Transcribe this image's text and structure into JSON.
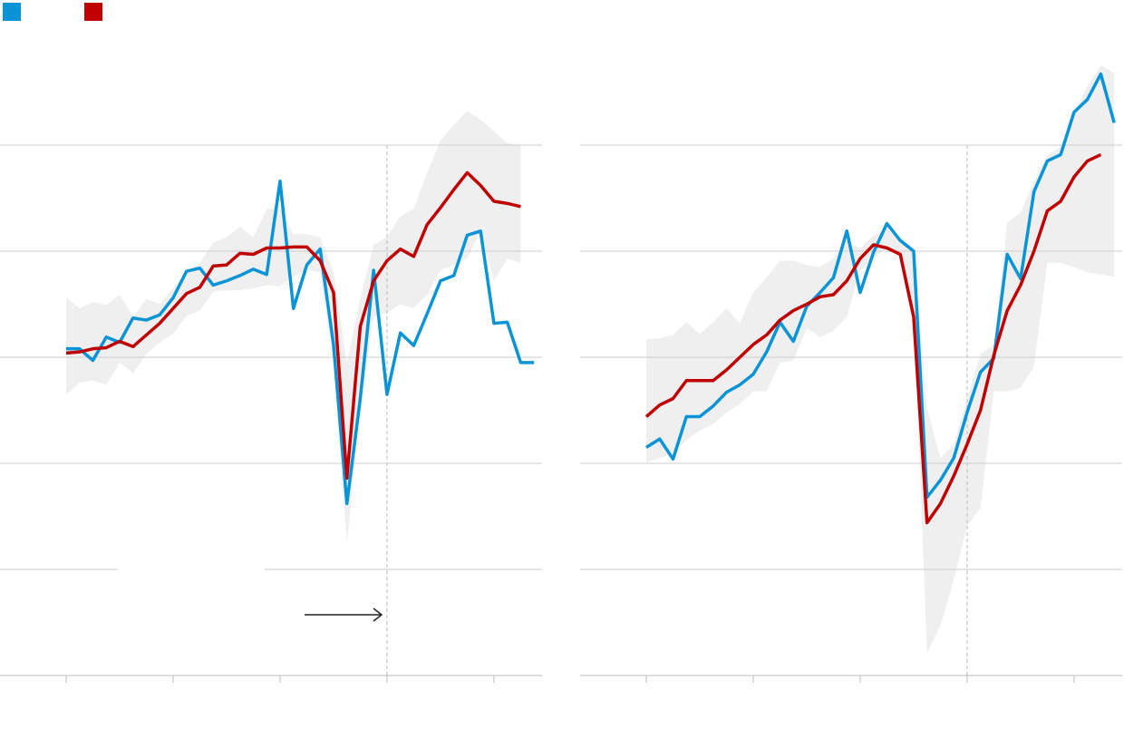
{
  "chart_data": [
    {
      "type": "line",
      "x": [
        0,
        1,
        2,
        3,
        4,
        5,
        6,
        7,
        8,
        9,
        10,
        11,
        12,
        13,
        14,
        15,
        16,
        17,
        18,
        19,
        20,
        21,
        22,
        23,
        24,
        25,
        26,
        27,
        28,
        29,
        30,
        31,
        32,
        33,
        34,
        35
      ],
      "series": [
        {
          "color": "#0a94d6",
          "values": [
            3.08,
            3.08,
            2.97,
            3.19,
            3.14,
            3.37,
            3.35,
            3.4,
            3.56,
            3.81,
            3.84,
            3.68,
            3.72,
            3.77,
            3.83,
            3.78,
            4.66,
            3.46,
            3.87,
            4.02,
            3.12,
            1.62,
            2.61,
            3.82,
            2.65,
            3.23,
            3.11,
            3.41,
            3.72,
            3.77,
            4.15,
            4.19,
            3.32,
            3.33,
            2.95,
            2.95
          ]
        },
        {
          "color": "#c00000",
          "values": [
            3.04,
            3.05,
            3.08,
            3.09,
            3.15,
            3.1,
            3.21,
            3.32,
            3.46,
            3.6,
            3.66,
            3.86,
            3.87,
            3.98,
            3.97,
            4.03,
            4.03,
            4.04,
            4.04,
            3.91,
            3.61,
            1.86,
            3.29,
            3.72,
            3.91,
            4.02,
            3.95,
            4.25,
            4.41,
            4.58,
            4.74,
            4.62,
            4.47,
            4.45,
            4.42,
            null
          ]
        }
      ],
      "band": {
        "color": "#efefef",
        "upper": [
          3.56,
          3.46,
          3.52,
          3.49,
          3.59,
          3.38,
          3.55,
          3.5,
          3.65,
          3.8,
          3.89,
          4.08,
          4.13,
          4.23,
          4.13,
          4.4,
          4.4,
          4.16,
          4.16,
          4.13,
          3.8,
          2.95,
          3.55,
          4.06,
          4.13,
          4.33,
          4.4,
          4.74,
          5.04,
          5.19,
          5.32,
          5.24,
          5.13,
          5.02,
          5.0,
          null
        ],
        "lower": [
          2.65,
          2.76,
          2.78,
          2.74,
          2.95,
          2.85,
          3.03,
          3.14,
          3.22,
          3.39,
          3.44,
          3.62,
          3.63,
          3.63,
          3.65,
          3.68,
          3.67,
          3.76,
          3.82,
          3.8,
          2.95,
          1.24,
          2.52,
          3.38,
          3.42,
          3.5,
          3.46,
          3.59,
          3.82,
          3.87,
          3.93,
          4.19,
          3.72,
          3.93,
          3.89,
          null
        ]
      },
      "marker_x": 24,
      "xlim": [
        -4.95,
        35.6
      ],
      "xticks": [
        0,
        8,
        16,
        24,
        32
      ],
      "ylim": [
        0,
        6
      ],
      "yticks": [
        0,
        1,
        2,
        3,
        4,
        5
      ],
      "grid": true
    },
    {
      "type": "line",
      "x": [
        0,
        1,
        2,
        3,
        4,
        5,
        6,
        7,
        8,
        9,
        10,
        11,
        12,
        13,
        14,
        15,
        16,
        17,
        18,
        19,
        20,
        21,
        22,
        23,
        24,
        25,
        26,
        27,
        28,
        29,
        30,
        31,
        32,
        33,
        34,
        35
      ],
      "series": [
        {
          "color": "#0a94d6",
          "values": [
            2.15,
            2.23,
            2.04,
            2.44,
            2.44,
            2.54,
            2.67,
            2.74,
            2.84,
            3.05,
            3.33,
            3.15,
            3.48,
            3.61,
            3.75,
            4.19,
            3.61,
            3.99,
            4.26,
            4.1,
            4.0,
            1.68,
            1.84,
            2.05,
            2.48,
            2.86,
            2.99,
            3.97,
            3.74,
            4.56,
            4.85,
            4.91,
            5.31,
            5.43,
            5.67,
            5.21
          ]
        },
        {
          "color": "#c00000",
          "values": [
            2.44,
            2.55,
            2.61,
            2.78,
            2.78,
            2.78,
            2.88,
            3.0,
            3.12,
            3.21,
            3.35,
            3.44,
            3.5,
            3.57,
            3.59,
            3.72,
            3.93,
            4.06,
            4.03,
            3.97,
            3.38,
            1.44,
            1.62,
            1.88,
            2.18,
            2.5,
            3.02,
            3.44,
            3.68,
            4.0,
            4.38,
            4.47,
            4.7,
            4.85,
            4.91,
            null
          ]
        }
      ],
      "band": {
        "color": "#efefef",
        "upper": [
          3.17,
          3.18,
          3.21,
          3.33,
          3.22,
          3.33,
          3.46,
          3.32,
          3.61,
          3.75,
          3.91,
          3.91,
          3.87,
          3.85,
          3.93,
          4.09,
          4.03,
          4.15,
          4.21,
          4.12,
          4.03,
          2.52,
          2.05,
          2.18,
          2.61,
          3.03,
          3.12,
          4.27,
          4.36,
          4.66,
          4.91,
          4.98,
          5.3,
          5.56,
          5.75,
          5.68
        ],
        "lower": [
          2.01,
          2.05,
          2.09,
          2.22,
          2.31,
          2.37,
          2.48,
          2.56,
          2.68,
          2.68,
          2.95,
          2.97,
          3.27,
          3.19,
          3.25,
          3.38,
          3.82,
          3.93,
          4.04,
          3.97,
          3.46,
          0.21,
          0.47,
          0.9,
          1.41,
          1.58,
          2.68,
          2.68,
          2.71,
          2.91,
          3.89,
          3.89,
          3.85,
          3.8,
          3.78,
          3.76
        ]
      },
      "marker_x": 24,
      "xlim": [
        -4.95,
        35.6
      ],
      "xticks": [
        0,
        8,
        16,
        24,
        32
      ],
      "ylim": [
        0,
        6
      ],
      "yticks": [
        0,
        1,
        2,
        3,
        4,
        5
      ],
      "grid": true
    }
  ]
}
